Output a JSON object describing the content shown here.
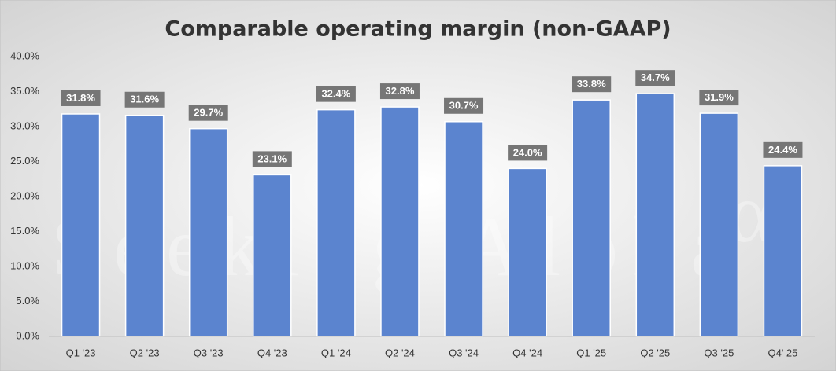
{
  "chart_data": {
    "type": "bar",
    "title": "Comparable operating margin (non-GAAP)",
    "watermark": "Seeking Alpha",
    "watermark_symbol": "α",
    "categories": [
      "Q1 '23",
      "Q2 '23",
      "Q3 '23",
      "Q4 '23",
      "Q1 '24",
      "Q2 '24",
      "Q3 '24",
      "Q4 '24",
      "Q1 '25",
      "Q2 '25",
      "Q3 '25",
      "Q4' 25"
    ],
    "values": [
      31.8,
      31.6,
      29.7,
      23.1,
      32.4,
      32.8,
      30.7,
      24.0,
      33.8,
      34.7,
      31.9,
      24.4
    ],
    "value_labels": [
      "31.8%",
      "31.6%",
      "29.7%",
      "23.1%",
      "32.4%",
      "32.8%",
      "30.7%",
      "24.0%",
      "33.8%",
      "34.7%",
      "31.9%",
      "24.4%"
    ],
    "color": "#5b84cf",
    "ylim": [
      0,
      40
    ],
    "yticks": [
      {
        "value": 0,
        "label": "0.0%"
      },
      {
        "value": 5,
        "label": "5.0%"
      },
      {
        "value": 10,
        "label": "10.0%"
      },
      {
        "value": 15,
        "label": "15.0%"
      },
      {
        "value": 20,
        "label": "20.0%"
      },
      {
        "value": 25,
        "label": "25.0%"
      },
      {
        "value": 30,
        "label": "30.0%"
      },
      {
        "value": 35,
        "label": "35.0%"
      },
      {
        "value": 40,
        "label": "40.0%"
      }
    ],
    "grid": false
  }
}
